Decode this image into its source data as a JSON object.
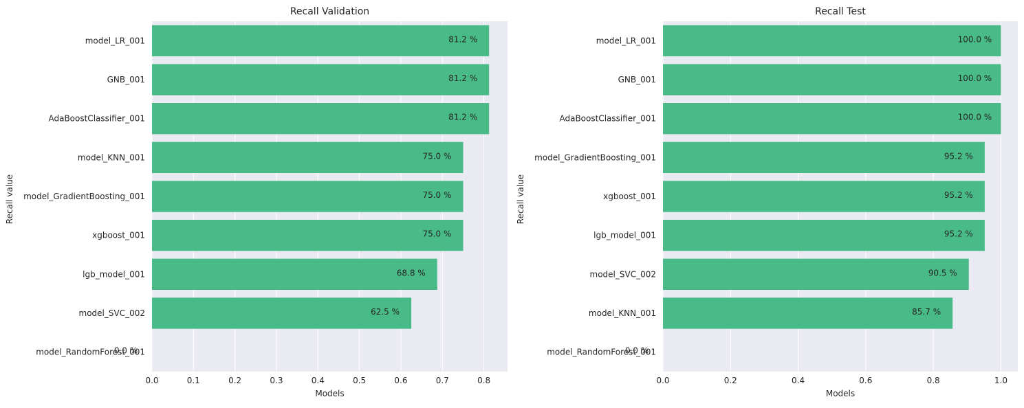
{
  "chart_data": [
    {
      "type": "bar",
      "orientation": "horizontal",
      "title": "Recall Validation",
      "xlabel": "Models",
      "ylabel": "Recall value",
      "xlim": [
        0,
        0.857
      ],
      "xticks": [
        0.0,
        0.1,
        0.2,
        0.3,
        0.4,
        0.5,
        0.6,
        0.7,
        0.8
      ],
      "xtick_labels": [
        "0.0",
        "0.1",
        "0.2",
        "0.3",
        "0.4",
        "0.5",
        "0.6",
        "0.7",
        "0.8"
      ],
      "grid": true,
      "bar_color": "#48bb88",
      "background": "#eaeaf2",
      "categories": [
        "model_LR_001",
        "GNB_001",
        "AdaBoostClassifier_001",
        "model_KNN_001",
        "model_GradientBoosting_001",
        "xgboost_001",
        "lgb_model_001",
        "model_SVC_002",
        "model_RandomForest_001"
      ],
      "values": [
        0.8125,
        0.8125,
        0.8125,
        0.75,
        0.75,
        0.75,
        0.6875,
        0.625,
        0.0
      ],
      "data_labels": [
        "81.2 %",
        "81.2 %",
        "81.2 %",
        "75.0 %",
        "75.0 %",
        "75.0 %",
        "68.8 %",
        "62.5 %",
        "0.0 %"
      ]
    },
    {
      "type": "bar",
      "orientation": "horizontal",
      "title": "Recall Test",
      "xlabel": "Models",
      "ylabel": "Recall value",
      "xlim": [
        0,
        1.05
      ],
      "xticks": [
        0.0,
        0.2,
        0.4,
        0.6,
        0.8,
        1.0
      ],
      "xtick_labels": [
        "0.0",
        "0.2",
        "0.4",
        "0.6",
        "0.8",
        "1.0"
      ],
      "grid": true,
      "bar_color": "#48bb88",
      "background": "#eaeaf2",
      "categories": [
        "model_LR_001",
        "GNB_001",
        "AdaBoostClassifier_001",
        "model_GradientBoosting_001",
        "xgboost_001",
        "lgb_model_001",
        "model_SVC_002",
        "model_KNN_001",
        "model_RandomForest_001"
      ],
      "values": [
        1.0,
        1.0,
        1.0,
        0.952,
        0.952,
        0.952,
        0.905,
        0.857,
        0.0
      ],
      "data_labels": [
        "100.0 %",
        "100.0 %",
        "100.0 %",
        "95.2 %",
        "95.2 %",
        "95.2 %",
        "90.5 %",
        "85.7 %",
        "0.0 %"
      ]
    }
  ]
}
